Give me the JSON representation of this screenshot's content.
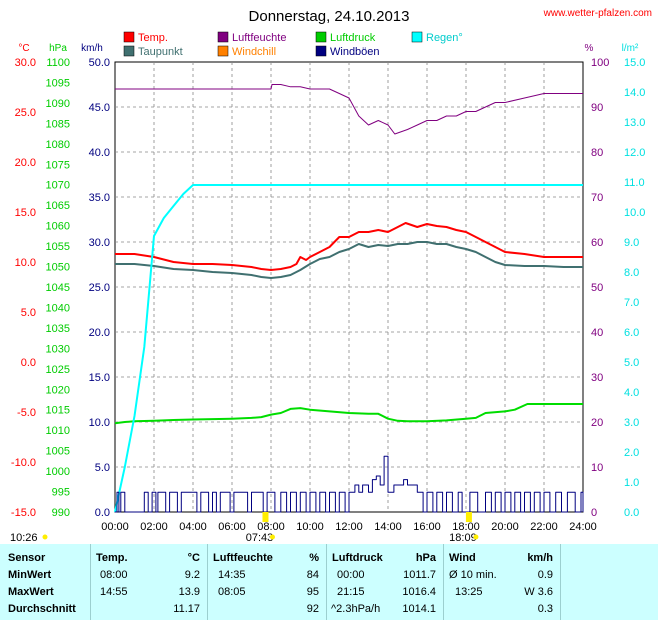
{
  "chart_data": {
    "type": "line",
    "title": "Donnerstag, 24.10.2013",
    "source": "www.wetter-pfalzen.com",
    "x_ticks": [
      "00:00",
      "02:00",
      "04:00",
      "06:00",
      "08:00",
      "10:00",
      "12:00",
      "14:00",
      "16:00",
      "18:00",
      "20:00",
      "22:00",
      "24:00"
    ],
    "xlim": [
      0,
      24
    ],
    "sunrise": "07:43",
    "sunset": "18:09",
    "corner_label": "10:26",
    "axes": {
      "temp": {
        "unit": "°C",
        "ylim": [
          -15,
          30
        ],
        "ticks": [
          "30.0",
          "25.0",
          "20.0",
          "15.0",
          "10.0",
          "5.0",
          "0.0",
          "-5.0",
          "-10.0",
          "-15.0"
        ],
        "color": "#ff0000"
      },
      "pressure": {
        "unit": "hPa",
        "ylim": [
          990,
          1100
        ],
        "ticks": [
          "1100",
          "1095",
          "1090",
          "1085",
          "1080",
          "1075",
          "1070",
          "1065",
          "1060",
          "1055",
          "1050",
          "1045",
          "1040",
          "1035",
          "1030",
          "1025",
          "1020",
          "1015",
          "1010",
          "1005",
          "1000",
          "995",
          "990"
        ],
        "color": "#00cc00"
      },
      "wind": {
        "unit": "km/h",
        "ylim": [
          0,
          50
        ],
        "ticks": [
          "50.0",
          "45.0",
          "40.0",
          "35.0",
          "30.0",
          "25.0",
          "20.0",
          "15.0",
          "10.0",
          "5.0",
          "0.0"
        ],
        "color": "#000080"
      },
      "humidity": {
        "unit": "%",
        "ylim": [
          0,
          100
        ],
        "ticks": [
          "100",
          "90",
          "80",
          "70",
          "60",
          "50",
          "40",
          "30",
          "20",
          "10",
          "0"
        ],
        "color": "#800080"
      },
      "rain": {
        "unit": "l/m²",
        "ylim": [
          0,
          15
        ],
        "ticks": [
          "15.0",
          "14.0",
          "13.0",
          "12.0",
          "11.0",
          "10.0",
          "9.0",
          "8.0",
          "7.0",
          "6.0",
          "5.0",
          "4.0",
          "3.0",
          "2.0",
          "1.0",
          "0.0"
        ],
        "color": "#00e0e0"
      }
    },
    "legend": [
      {
        "name": "Temp.",
        "color": "#ff0000"
      },
      {
        "name": "Luftfeuchte",
        "color": "#800080"
      },
      {
        "name": "Luftdruck",
        "color": "#00cc00"
      },
      {
        "name": "Regen°",
        "color": "#00ffff"
      },
      {
        "name": "Taupunkt",
        "color": "#407070"
      },
      {
        "name": "Windchill",
        "color": "#ff8000"
      },
      {
        "name": "Windböen",
        "color": "#000080"
      }
    ],
    "series": [
      {
        "name": "Temp.",
        "axis": "temp",
        "color": "#ff0000",
        "width": 2,
        "x": [
          0,
          1,
          2,
          3,
          4,
          5,
          6,
          7,
          7.5,
          8,
          8.5,
          9,
          9.3,
          9.5,
          9.8,
          10,
          10.5,
          11,
          11.5,
          12,
          12.5,
          13,
          13.5,
          14,
          14.5,
          14.9,
          15.5,
          16,
          16.5,
          17,
          17.5,
          18,
          18.5,
          19,
          19.5,
          20,
          21,
          22,
          23,
          24
        ],
        "y": [
          10.8,
          10.8,
          10.5,
          10,
          9.8,
          9.8,
          9.7,
          9.5,
          9.3,
          9.2,
          9.3,
          9.5,
          9.8,
          10.5,
          10.2,
          10.5,
          11,
          11.5,
          12.5,
          12.5,
          13,
          13,
          13.2,
          13,
          13.5,
          13.9,
          13.5,
          13.8,
          13.6,
          13.5,
          13.2,
          13,
          12.5,
          12,
          11.5,
          11,
          10.8,
          10.5,
          10.5,
          10.5
        ]
      },
      {
        "name": "Taupunkt",
        "axis": "temp",
        "color": "#407070",
        "width": 2,
        "x": [
          0,
          1,
          2,
          3,
          4,
          5,
          6,
          7,
          7.5,
          8,
          8.5,
          9,
          9.5,
          10,
          10.5,
          11,
          11.5,
          12,
          12.5,
          13,
          13.5,
          14,
          14.5,
          15,
          15.5,
          16,
          16.5,
          17,
          17.5,
          18,
          18.5,
          19,
          19.5,
          20,
          21,
          22,
          23,
          24
        ],
        "y": [
          9.8,
          9.8,
          9.6,
          9.3,
          9.2,
          9.0,
          8.9,
          8.7,
          8.5,
          8.4,
          8.5,
          8.7,
          9.2,
          9.8,
          10.3,
          10.5,
          11,
          11.3,
          11.8,
          11.5,
          11.7,
          11.6,
          11.8,
          11.8,
          12,
          12,
          11.8,
          11.8,
          11.5,
          11.3,
          11,
          10.5,
          10,
          9.7,
          9.6,
          9.6,
          9.5,
          9.5
        ]
      },
      {
        "name": "Luftfeuchte",
        "axis": "humidity",
        "color": "#800080",
        "width": 1,
        "x": [
          0,
          2,
          4,
          6,
          7,
          8,
          8.05,
          8.5,
          9,
          9.5,
          10,
          11,
          11.5,
          12,
          12.5,
          13,
          13.5,
          14,
          14.35,
          15,
          15.5,
          16,
          16.5,
          17,
          17.5,
          18,
          18.5,
          19,
          19.5,
          20,
          21,
          22,
          23,
          24
        ],
        "y": [
          94,
          94,
          94,
          94,
          94,
          94,
          95,
          95,
          94.5,
          94.5,
          94,
          94,
          93,
          92,
          88,
          86,
          87,
          86,
          84,
          85,
          86,
          87,
          87,
          88,
          88,
          89,
          89,
          90,
          91,
          91,
          92,
          93,
          93,
          93
        ]
      },
      {
        "name": "Luftdruck",
        "axis": "pressure",
        "color": "#00dd00",
        "width": 2,
        "x": [
          0,
          0.5,
          1,
          2,
          3,
          4,
          5,
          6,
          7,
          7.5,
          8,
          8.5,
          9,
          9.5,
          10,
          11,
          12,
          13,
          13.5,
          14,
          14.5,
          15,
          16,
          17,
          18,
          18.5,
          19,
          20,
          20.5,
          21.15,
          21.5,
          22,
          23,
          24
        ],
        "y": [
          1011.7,
          1012,
          1012.2,
          1012.3,
          1012.5,
          1012.6,
          1012.7,
          1012.8,
          1013,
          1013.2,
          1013.8,
          1014.2,
          1015.2,
          1015.4,
          1015,
          1014.6,
          1014.2,
          1014,
          1014,
          1012.8,
          1012.3,
          1012.2,
          1012.2,
          1012.4,
          1012.8,
          1013,
          1014.2,
          1014.6,
          1015,
          1016.4,
          1016.4,
          1016.4,
          1016.4,
          1016.4
        ]
      },
      {
        "name": "Regen°",
        "axis": "rain",
        "color": "#00ffff",
        "width": 2,
        "x": [
          0,
          0.5,
          1,
          1.5,
          2,
          2.5,
          3,
          3.5,
          4,
          5,
          8,
          12,
          16,
          20,
          24
        ],
        "y": [
          0,
          1.5,
          3.2,
          5.5,
          9.2,
          9.8,
          10.2,
          10.6,
          10.9,
          10.9,
          10.9,
          10.9,
          10.9,
          10.9,
          10.9
        ]
      },
      {
        "name": "Windböen",
        "axis": "wind",
        "color": "#000080",
        "width": 1,
        "step": true,
        "x": [
          0,
          0.1,
          0.2,
          0.3,
          0.5,
          0.8,
          1.5,
          1.7,
          1.9,
          2.1,
          2.2,
          2.6,
          2.8,
          3.2,
          3.4,
          4.2,
          4.4,
          4.8,
          5.0,
          5.2,
          5.4,
          5.9,
          6.1,
          6.8,
          7.0,
          7.6,
          7.8,
          8.2,
          8.5,
          8.8,
          9.0,
          9.3,
          9.5,
          9.8,
          10.0,
          10.3,
          10.5,
          10.8,
          11.0,
          11.3,
          11.5,
          11.8,
          12.0,
          12.3,
          12.5,
          12.7,
          13.0,
          13.2,
          13.4,
          13.6,
          13.8,
          14.0,
          14.3,
          14.5,
          14.8,
          15.0,
          15.3,
          15.5,
          15.8,
          16.0,
          16.3,
          16.5,
          16.8,
          17.0,
          17.3,
          17.6,
          17.8,
          18.2,
          18.6,
          19.0,
          19.3,
          19.5,
          19.8,
          20.0,
          20.3,
          20.5,
          20.8,
          21.0,
          21.3,
          21.5,
          21.8,
          22.0,
          22.3,
          22.6,
          22.9,
          23.2,
          23.6,
          23.9,
          24
        ],
        "y": [
          0,
          2.2,
          0,
          2.2,
          0,
          0,
          2.2,
          0,
          2.2,
          0,
          2.2,
          0,
          2.2,
          0,
          2.2,
          0,
          2.2,
          0,
          2.2,
          0,
          2.2,
          0,
          2.2,
          0,
          2.2,
          0,
          2.2,
          0,
          2.2,
          0,
          2.2,
          0,
          2.2,
          0,
          2.2,
          0,
          2.2,
          0,
          2.2,
          0,
          2.2,
          0,
          2.2,
          3.0,
          2.2,
          3.0,
          2.2,
          3.6,
          4.0,
          3.0,
          6.2,
          2.2,
          3.0,
          3.0,
          3.6,
          3.0,
          3.0,
          2.2,
          0,
          2.2,
          0,
          2.2,
          0,
          2.2,
          0,
          2.2,
          0,
          2.2,
          0,
          2.2,
          0,
          2.2,
          0,
          2.2,
          0,
          2.2,
          0,
          2.2,
          0,
          2.2,
          0,
          2.2,
          0,
          2.2,
          0,
          2.2,
          0,
          2.2,
          0
        ]
      }
    ]
  },
  "table": {
    "headers": [
      "Sensor",
      "Temp.",
      "°C",
      "Luftfeuchte",
      "%",
      "Luftdruck",
      "hPa",
      "Wind",
      "km/h"
    ],
    "rows": [
      {
        "label": "MinWert",
        "temp_time": "08:00",
        "temp_val": "9.2",
        "hum_time": "14:35",
        "hum_val": "84",
        "press_time": "00:00",
        "press_val": "1011.7",
        "wind_label": "Ø 10 min.",
        "wind_val": "0.9"
      },
      {
        "label": "MaxWert",
        "temp_time": "14:55",
        "temp_val": "13.9",
        "hum_time": "08:05",
        "hum_val": "95",
        "press_time": "21:15",
        "press_val": "1016.4",
        "wind_label": "13:25",
        "wind_val": "W 3.6"
      },
      {
        "label": "Durchschnitt",
        "temp_time": "",
        "temp_val": "11.17",
        "hum_time": "",
        "hum_val": "92",
        "press_time": "^2.3hPa/h",
        "press_val": "1014.1",
        "wind_label": "",
        "wind_val": "0.3"
      }
    ]
  }
}
